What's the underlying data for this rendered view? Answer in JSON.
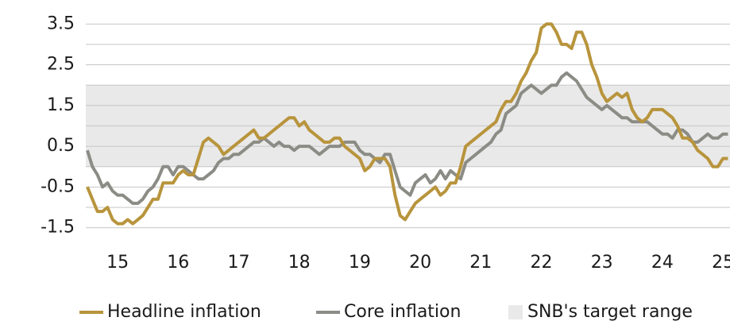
{
  "chart_data": {
    "type": "line",
    "categories": [
      null,
      null,
      null,
      null,
      null,
      null,
      "15",
      null,
      null,
      null,
      null,
      null,
      null,
      null,
      null,
      null,
      null,
      null,
      "16",
      null,
      null,
      null,
      null,
      null,
      null,
      null,
      null,
      null,
      null,
      null,
      "17",
      null,
      null,
      null,
      null,
      null,
      null,
      null,
      null,
      null,
      null,
      null,
      "18",
      null,
      null,
      null,
      null,
      null,
      null,
      null,
      null,
      null,
      null,
      null,
      "19",
      null,
      null,
      null,
      null,
      null,
      null,
      null,
      null,
      null,
      null,
      null,
      "20",
      null,
      null,
      null,
      null,
      null,
      null,
      null,
      null,
      null,
      null,
      null,
      "21",
      null,
      null,
      null,
      null,
      null,
      null,
      null,
      null,
      null,
      null,
      null,
      "22",
      null,
      null,
      null,
      null,
      null,
      null,
      null,
      null,
      null,
      null,
      null,
      "23",
      null,
      null,
      null,
      null,
      null,
      null,
      null,
      null,
      null,
      null,
      null,
      "24",
      null,
      null,
      null,
      null,
      null,
      null,
      null,
      null,
      null,
      null,
      null,
      "25",
      null
    ],
    "series": [
      {
        "name": "Headline inflation",
        "color": "#b8943c",
        "values": [
          -0.5,
          -0.8,
          -1.1,
          -1.1,
          -1.0,
          -1.3,
          -1.4,
          -1.4,
          -1.3,
          -1.4,
          -1.3,
          -1.2,
          -1.0,
          -0.8,
          -0.8,
          -0.4,
          -0.4,
          -0.4,
          -0.2,
          -0.1,
          -0.2,
          -0.2,
          0.2,
          0.6,
          0.7,
          0.6,
          0.5,
          0.3,
          0.4,
          0.5,
          0.6,
          0.7,
          0.8,
          0.9,
          0.7,
          0.7,
          0.8,
          0.9,
          1.0,
          1.1,
          1.2,
          1.2,
          1.0,
          1.1,
          0.9,
          0.8,
          0.7,
          0.6,
          0.6,
          0.7,
          0.7,
          0.5,
          0.4,
          0.3,
          0.2,
          -0.1,
          0.0,
          0.2,
          0.2,
          0.2,
          0.0,
          -0.7,
          -1.2,
          -1.3,
          -1.1,
          -0.9,
          -0.8,
          -0.7,
          -0.6,
          -0.5,
          -0.7,
          -0.6,
          -0.4,
          -0.4,
          0.0,
          0.5,
          0.6,
          0.7,
          0.8,
          0.9,
          1.0,
          1.1,
          1.4,
          1.6,
          1.6,
          1.8,
          2.1,
          2.3,
          2.6,
          2.8,
          3.4,
          3.5,
          3.5,
          3.3,
          3.0,
          3.0,
          2.9,
          3.3,
          3.3,
          3.0,
          2.5,
          2.2,
          1.8,
          1.6,
          1.7,
          1.8,
          1.7,
          1.8,
          1.4,
          1.2,
          1.1,
          1.2,
          1.4,
          1.4,
          1.4,
          1.3,
          1.2,
          1.0,
          0.7,
          0.7,
          0.6,
          0.4,
          0.3,
          0.2,
          0.0,
          0.0,
          0.2,
          0.2
        ]
      },
      {
        "name": "Core inflation",
        "color": "#8c8c86",
        "values": [
          0.4,
          0.0,
          -0.2,
          -0.5,
          -0.4,
          -0.6,
          -0.7,
          -0.7,
          -0.8,
          -0.9,
          -0.9,
          -0.8,
          -0.6,
          -0.5,
          -0.3,
          0.0,
          0.0,
          -0.2,
          0.0,
          0.0,
          -0.1,
          -0.2,
          -0.3,
          -0.3,
          -0.2,
          -0.1,
          0.1,
          0.2,
          0.2,
          0.3,
          0.3,
          0.4,
          0.5,
          0.6,
          0.6,
          0.7,
          0.6,
          0.5,
          0.6,
          0.5,
          0.5,
          0.4,
          0.5,
          0.5,
          0.5,
          0.4,
          0.3,
          0.4,
          0.5,
          0.5,
          0.5,
          0.6,
          0.6,
          0.6,
          0.4,
          0.3,
          0.3,
          0.2,
          0.1,
          0.3,
          0.3,
          -0.1,
          -0.5,
          -0.6,
          -0.7,
          -0.4,
          -0.3,
          -0.2,
          -0.4,
          -0.3,
          -0.1,
          -0.3,
          -0.1,
          -0.2,
          -0.3,
          0.1,
          0.2,
          0.3,
          0.4,
          0.5,
          0.6,
          0.8,
          0.9,
          1.3,
          1.4,
          1.5,
          1.8,
          1.9,
          2.0,
          1.9,
          1.8,
          1.9,
          2.0,
          2.0,
          2.2,
          2.3,
          2.2,
          2.1,
          1.9,
          1.7,
          1.6,
          1.5,
          1.4,
          1.5,
          1.4,
          1.3,
          1.2,
          1.2,
          1.1,
          1.1,
          1.1,
          1.1,
          1.0,
          0.9,
          0.8,
          0.8,
          0.7,
          0.9,
          0.9,
          0.8,
          0.6,
          0.6,
          0.7,
          0.8,
          0.7,
          0.7,
          0.8,
          0.8
        ]
      }
    ],
    "target_range": {
      "name": "SNB's target range",
      "range": [
        0,
        2
      ],
      "color": "#e9e9e9"
    },
    "ylim": [
      -1.8,
      3.7
    ],
    "yticks": [
      -1.5,
      -0.5,
      0.5,
      1.5,
      2.5,
      3.5
    ],
    "minor_yticks": [
      -1,
      0,
      1,
      2,
      3
    ],
    "grid": true
  }
}
